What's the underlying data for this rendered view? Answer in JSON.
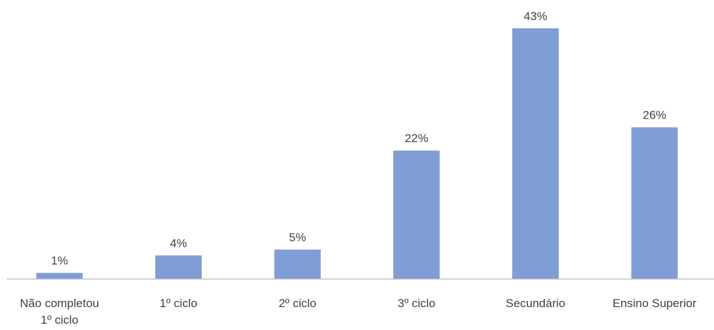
{
  "chart_data": {
    "type": "bar",
    "title": "",
    "xlabel": "",
    "ylabel": "",
    "categories": [
      [
        "Não completou",
        "1º ciclo"
      ],
      [
        "1º ciclo"
      ],
      [
        "2º ciclo"
      ],
      [
        "3º ciclo"
      ],
      [
        "Secundário"
      ],
      [
        "Ensino Superior"
      ]
    ],
    "values": [
      1,
      4,
      5,
      22,
      43,
      26
    ],
    "value_labels": [
      "1%",
      "4%",
      "5%",
      "22%",
      "43%",
      "26%"
    ],
    "ylim": [
      0,
      45
    ],
    "grid": false,
    "legend": "none",
    "bar_color": "#7F9ED5",
    "axis_color": "#BFBFBF",
    "text_color": "#404040"
  }
}
